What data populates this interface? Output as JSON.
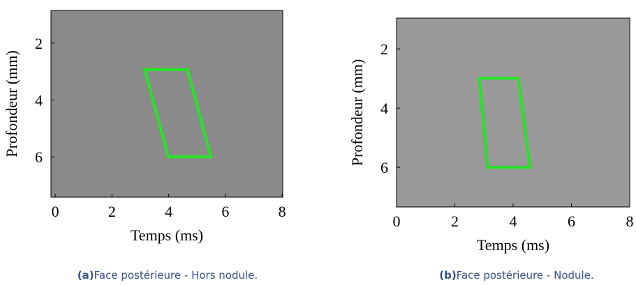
{
  "chart_data": [
    {
      "type": "image",
      "xlabel": "Temps (ms)",
      "ylabel": "Profondeur (mm)",
      "xlim": [
        -0.15,
        8.02
      ],
      "ylim": [
        0.85,
        7.42
      ],
      "xticks": [
        0,
        2,
        4,
        6,
        8
      ],
      "yticks": [
        2,
        4,
        6
      ],
      "polygon": {
        "x": [
          3.15,
          4.66,
          5.49,
          3.99
        ],
        "y": [
          2.93,
          2.93,
          6.0,
          6.0
        ],
        "color": "#22e622"
      },
      "caption_label": "(a)",
      "caption": "Face postérieure - Hors nodule."
    },
    {
      "type": "image",
      "xlabel": "Temps (ms)",
      "ylabel": "Profondeur (mm)",
      "xlim": [
        0,
        8
      ],
      "ylim": [
        0.96,
        7.34
      ],
      "xticks": [
        0,
        2,
        4,
        6,
        8
      ],
      "yticks": [
        2,
        4,
        6
      ],
      "polygon": {
        "x": [
          2.84,
          4.18,
          4.58,
          3.13
        ],
        "y": [
          2.99,
          2.99,
          6.0,
          6.0
        ],
        "color": "#22e622"
      },
      "caption_label": "(b)",
      "caption": "Face postérieure - Nodule."
    }
  ]
}
